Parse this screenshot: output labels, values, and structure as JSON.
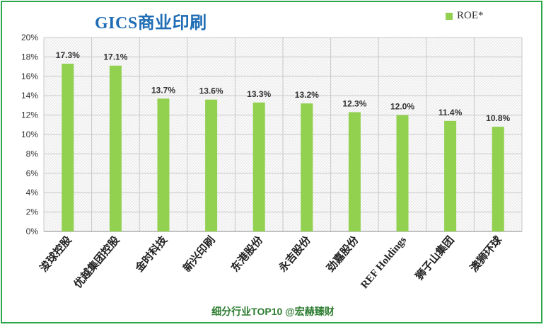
{
  "footer": "细分行业TOP10 @宏赫臻财",
  "chart_data": {
    "type": "bar",
    "title": "GICS商业印刷",
    "legend": [
      "ROE*"
    ],
    "legend_placement": "top-right",
    "categories": [
      "浚球控股",
      "优越集团控股",
      "金时科技",
      "新兴印刷",
      "东港股份",
      "永吉股份",
      "劲嘉股份",
      "REF Holdings",
      "狮子山集团",
      "澳狮环球"
    ],
    "series": [
      {
        "name": "ROE*",
        "values": [
          17.3,
          17.1,
          13.7,
          13.6,
          13.3,
          13.2,
          12.3,
          12.0,
          11.4,
          10.8
        ],
        "color": "#92d050"
      }
    ],
    "data_labels": [
      "17.3%",
      "17.1%",
      "13.7%",
      "13.6%",
      "13.3%",
      "13.2%",
      "12.3%",
      "12.0%",
      "11.4%",
      "10.8%"
    ],
    "y_ticks": [
      "0%",
      "2%",
      "4%",
      "6%",
      "8%",
      "10%",
      "12%",
      "14%",
      "16%",
      "18%",
      "20%"
    ],
    "ylim": [
      0,
      20
    ],
    "xlabel": "",
    "ylabel": "",
    "grid": true
  }
}
